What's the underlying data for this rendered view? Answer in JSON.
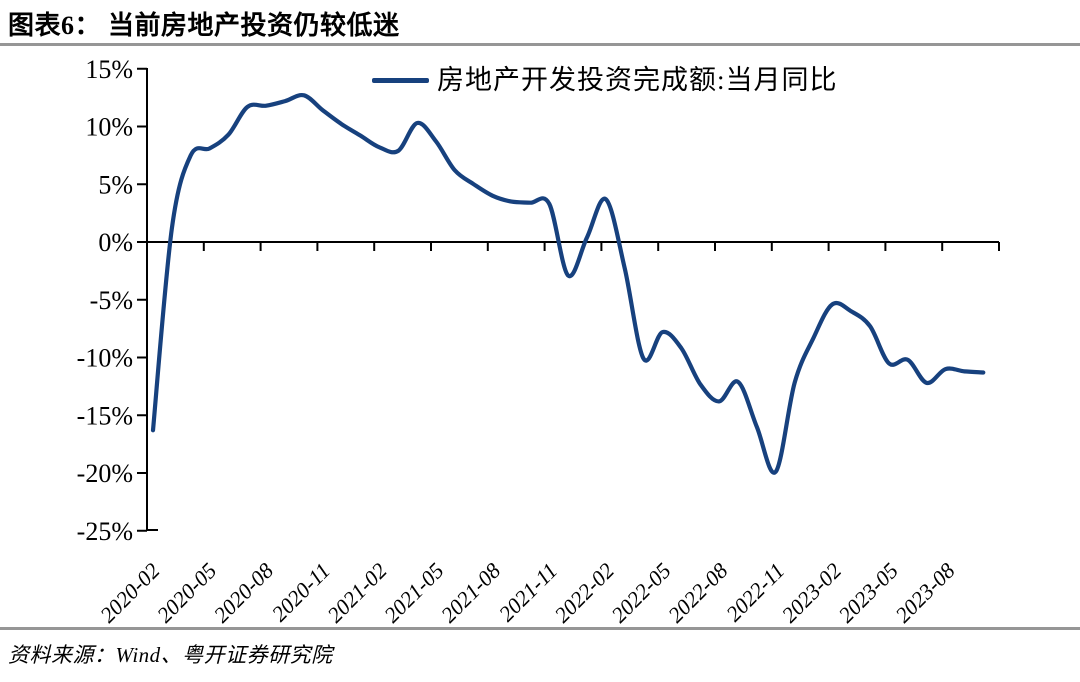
{
  "header": {
    "title": "图表6： 当前房地产投资仍较低迷"
  },
  "legend": {
    "label": "房地产开发投资完成额:当月同比"
  },
  "footer": {
    "source_label": "资料来源：Wind、粤开证券研究院"
  },
  "colors": {
    "line": "#17417e",
    "axis": "#000000",
    "rule": "#969696",
    "text": "#000000"
  },
  "chart_data": {
    "type": "line",
    "title": "图表6： 当前房地产投资仍较低迷",
    "series_name": "房地产开发投资完成额:当月同比",
    "x": [
      "2020-02",
      "2020-03",
      "2020-04",
      "2020-05",
      "2020-06",
      "2020-07",
      "2020-08",
      "2020-09",
      "2020-10",
      "2020-11",
      "2020-12",
      "2021-01",
      "2021-02",
      "2021-03",
      "2021-04",
      "2021-05",
      "2021-06",
      "2021-07",
      "2021-08",
      "2021-09",
      "2021-10",
      "2021-11",
      "2021-12",
      "2022-01",
      "2022-02",
      "2022-03",
      "2022-04",
      "2022-05",
      "2022-06",
      "2022-07",
      "2022-08",
      "2022-09",
      "2022-10",
      "2022-11",
      "2022-12",
      "2023-01",
      "2023-02",
      "2023-03",
      "2023-04",
      "2023-05",
      "2023-06",
      "2023-07",
      "2023-08",
      "2023-09",
      "2023-10"
    ],
    "values": [
      -16.3,
      1.2,
      7.5,
      8.1,
      9.3,
      11.7,
      11.8,
      12.2,
      12.7,
      11.4,
      10.2,
      9.2,
      8.2,
      7.9,
      10.3,
      8.7,
      6.2,
      5.0,
      4.0,
      3.5,
      3.4,
      3.3,
      -2.9,
      0.4,
      3.7,
      -2.3,
      -10.1,
      -7.8,
      -9.2,
      -12.3,
      -13.8,
      -12.1,
      -16.0,
      -19.9,
      -12.2,
      -8.3,
      -5.4,
      -6.0,
      -7.3,
      -10.5,
      -10.2,
      -12.2,
      -11.0,
      -11.2,
      -11.3
    ],
    "x_tick_labels": [
      "2020-02",
      "2020-05",
      "2020-08",
      "2020-11",
      "2021-02",
      "2021-05",
      "2021-08",
      "2021-11",
      "2022-02",
      "2022-05",
      "2022-08",
      "2022-11",
      "2023-02",
      "2023-05",
      "2023-08"
    ],
    "y_ticks": [
      15,
      10,
      5,
      0,
      -5,
      -10,
      -15,
      -20,
      -25
    ],
    "y_tick_labels": [
      "15%",
      "10%",
      "5%",
      "0%",
      "-5%",
      "-10%",
      "-15%",
      "-20%",
      "-25%"
    ],
    "ylim": [
      -25,
      15
    ],
    "xlabel": "",
    "ylabel": "",
    "grid": false,
    "legend_position": "top-center",
    "line_smooth": true
  }
}
